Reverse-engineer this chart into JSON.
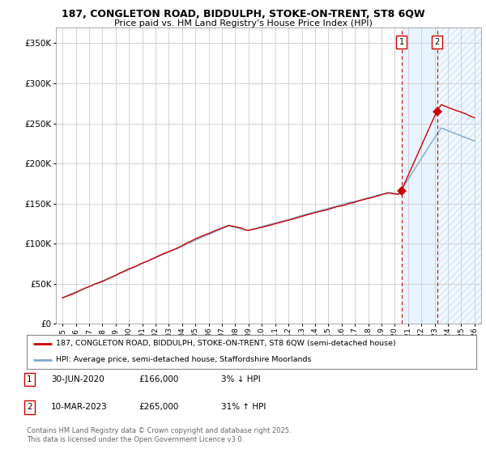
{
  "title": "187, CONGLETON ROAD, BIDDULPH, STOKE-ON-TRENT, ST8 6QW",
  "subtitle": "Price paid vs. HM Land Registry's House Price Index (HPI)",
  "ylim": [
    0,
    370000
  ],
  "yticks": [
    0,
    50000,
    100000,
    150000,
    200000,
    250000,
    300000,
    350000
  ],
  "ytick_labels": [
    "£0",
    "£50K",
    "£100K",
    "£150K",
    "£200K",
    "£250K",
    "£300K",
    "£350K"
  ],
  "line1_color": "#cc0000",
  "line2_color": "#80a8cc",
  "shade_color": "#ddeeff",
  "annotation1_label": "1",
  "annotation2_label": "2",
  "sale1_x": 2020.5,
  "sale1_y": 166000,
  "sale2_x": 2023.2,
  "sale2_y": 265000,
  "legend_line1": "187, CONGLETON ROAD, BIDDULPH, STOKE-ON-TRENT, ST8 6QW (semi-detached house)",
  "legend_line2": "HPI: Average price, semi-detached house, Staffordshire Moorlands",
  "note1_label": "1",
  "note1_date": "30-JUN-2020",
  "note1_price": "£166,000",
  "note1_hpi": "3% ↓ HPI",
  "note2_label": "2",
  "note2_date": "10-MAR-2023",
  "note2_price": "£265,000",
  "note2_hpi": "31% ↑ HPI",
  "footer": "Contains HM Land Registry data © Crown copyright and database right 2025.\nThis data is licensed under the Open Government Licence v3.0.",
  "background_color": "#ffffff",
  "grid_color": "#cccccc",
  "vline_color": "#cc0000",
  "xmin": 1994.5,
  "xmax": 2026.5
}
